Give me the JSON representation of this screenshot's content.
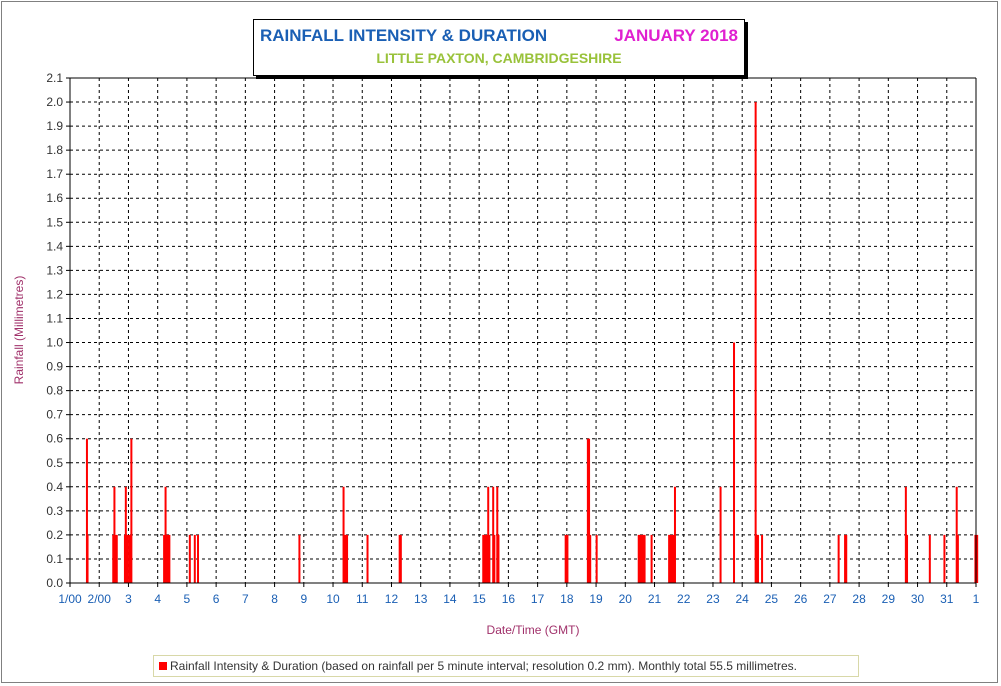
{
  "chart_data": {
    "type": "bar",
    "title": "RAINFALL INTENSITY & DURATION",
    "title_date": "JANUARY 2018",
    "subtitle": "LITTLE PAXTON, CAMBRIDGESHIRE",
    "xlabel": "Date/Time (GMT)",
    "ylabel": "Rainfall (Millimetres)",
    "ylim": [
      0,
      2.1
    ],
    "xlim": [
      1,
      32
    ],
    "y_ticks": [
      "0.0",
      "0.1",
      "0.2",
      "0.3",
      "0.4",
      "0.5",
      "0.6",
      "0.7",
      "0.8",
      "0.9",
      "1.0",
      "1.1",
      "1.2",
      "1.3",
      "1.4",
      "1.5",
      "1.6",
      "1.7",
      "1.8",
      "1.9",
      "2.0",
      "2.1"
    ],
    "x_tick_labels": [
      "1/00",
      "2/00",
      "3",
      "4",
      "5",
      "6",
      "7",
      "8",
      "9",
      "10",
      "11",
      "12",
      "13",
      "14",
      "15",
      "16",
      "17",
      "18",
      "19",
      "20",
      "21",
      "22",
      "23",
      "24",
      "25",
      "26",
      "27",
      "28",
      "29",
      "30",
      "31",
      "1"
    ],
    "grid": true,
    "legend_position": "bottom",
    "series": [
      {
        "name": "Rainfall Intensity & Duration (based on rainfall per 5 minute interval; resolution 0.2 mm). Monthly total 55.5 millimetres.",
        "color": "#ff0000",
        "points": [
          [
            1.58,
            0.6
          ],
          [
            1.6,
            0.2
          ],
          [
            2.48,
            0.2
          ],
          [
            2.52,
            0.4
          ],
          [
            2.56,
            0.2
          ],
          [
            2.6,
            0.2
          ],
          [
            2.88,
            0.2
          ],
          [
            2.91,
            0.4
          ],
          [
            2.94,
            0.2
          ],
          [
            2.98,
            0.2
          ],
          [
            3.04,
            0.2
          ],
          [
            3.1,
            0.6
          ],
          [
            4.22,
            0.2
          ],
          [
            4.27,
            0.4
          ],
          [
            4.31,
            0.2
          ],
          [
            4.35,
            0.2
          ],
          [
            4.4,
            0.2
          ],
          [
            5.1,
            0.2
          ],
          [
            5.27,
            0.2
          ],
          [
            5.38,
            0.2
          ],
          [
            8.85,
            0.2
          ],
          [
            10.36,
            0.4
          ],
          [
            10.4,
            0.2
          ],
          [
            10.44,
            0.2
          ],
          [
            10.48,
            0.2
          ],
          [
            11.18,
            0.2
          ],
          [
            12.28,
            0.2
          ],
          [
            12.32,
            0.2
          ],
          [
            15.14,
            0.2
          ],
          [
            15.18,
            0.2
          ],
          [
            15.22,
            0.2
          ],
          [
            15.26,
            0.2
          ],
          [
            15.31,
            0.4
          ],
          [
            15.35,
            0.2
          ],
          [
            15.48,
            0.4
          ],
          [
            15.52,
            0.2
          ],
          [
            15.62,
            0.4
          ],
          [
            15.66,
            0.2
          ],
          [
            17.96,
            0.2
          ],
          [
            18.02,
            0.2
          ],
          [
            18.72,
            0.6
          ],
          [
            18.76,
            0.6
          ],
          [
            18.8,
            0.2
          ],
          [
            19.02,
            0.2
          ],
          [
            20.46,
            0.2
          ],
          [
            20.5,
            0.2
          ],
          [
            20.54,
            0.2
          ],
          [
            20.58,
            0.2
          ],
          [
            20.62,
            0.2
          ],
          [
            20.66,
            0.2
          ],
          [
            20.9,
            0.2
          ],
          [
            21.5,
            0.2
          ],
          [
            21.54,
            0.2
          ],
          [
            21.58,
            0.2
          ],
          [
            21.62,
            0.2
          ],
          [
            21.66,
            0.2
          ],
          [
            21.7,
            0.4
          ],
          [
            23.26,
            0.4
          ],
          [
            23.72,
            1.0
          ],
          [
            24.46,
            2.0
          ],
          [
            24.5,
            0.2
          ],
          [
            24.54,
            0.2
          ],
          [
            24.68,
            0.2
          ],
          [
            27.3,
            0.2
          ],
          [
            27.52,
            0.2
          ],
          [
            27.56,
            0.2
          ],
          [
            29.6,
            0.4
          ],
          [
            29.64,
            0.2
          ],
          [
            30.42,
            0.2
          ],
          [
            30.92,
            0.2
          ],
          [
            31.34,
            0.4
          ],
          [
            31.38,
            0.2
          ],
          [
            31.98,
            0.2
          ],
          [
            32.04,
            0.2
          ]
        ]
      }
    ]
  }
}
